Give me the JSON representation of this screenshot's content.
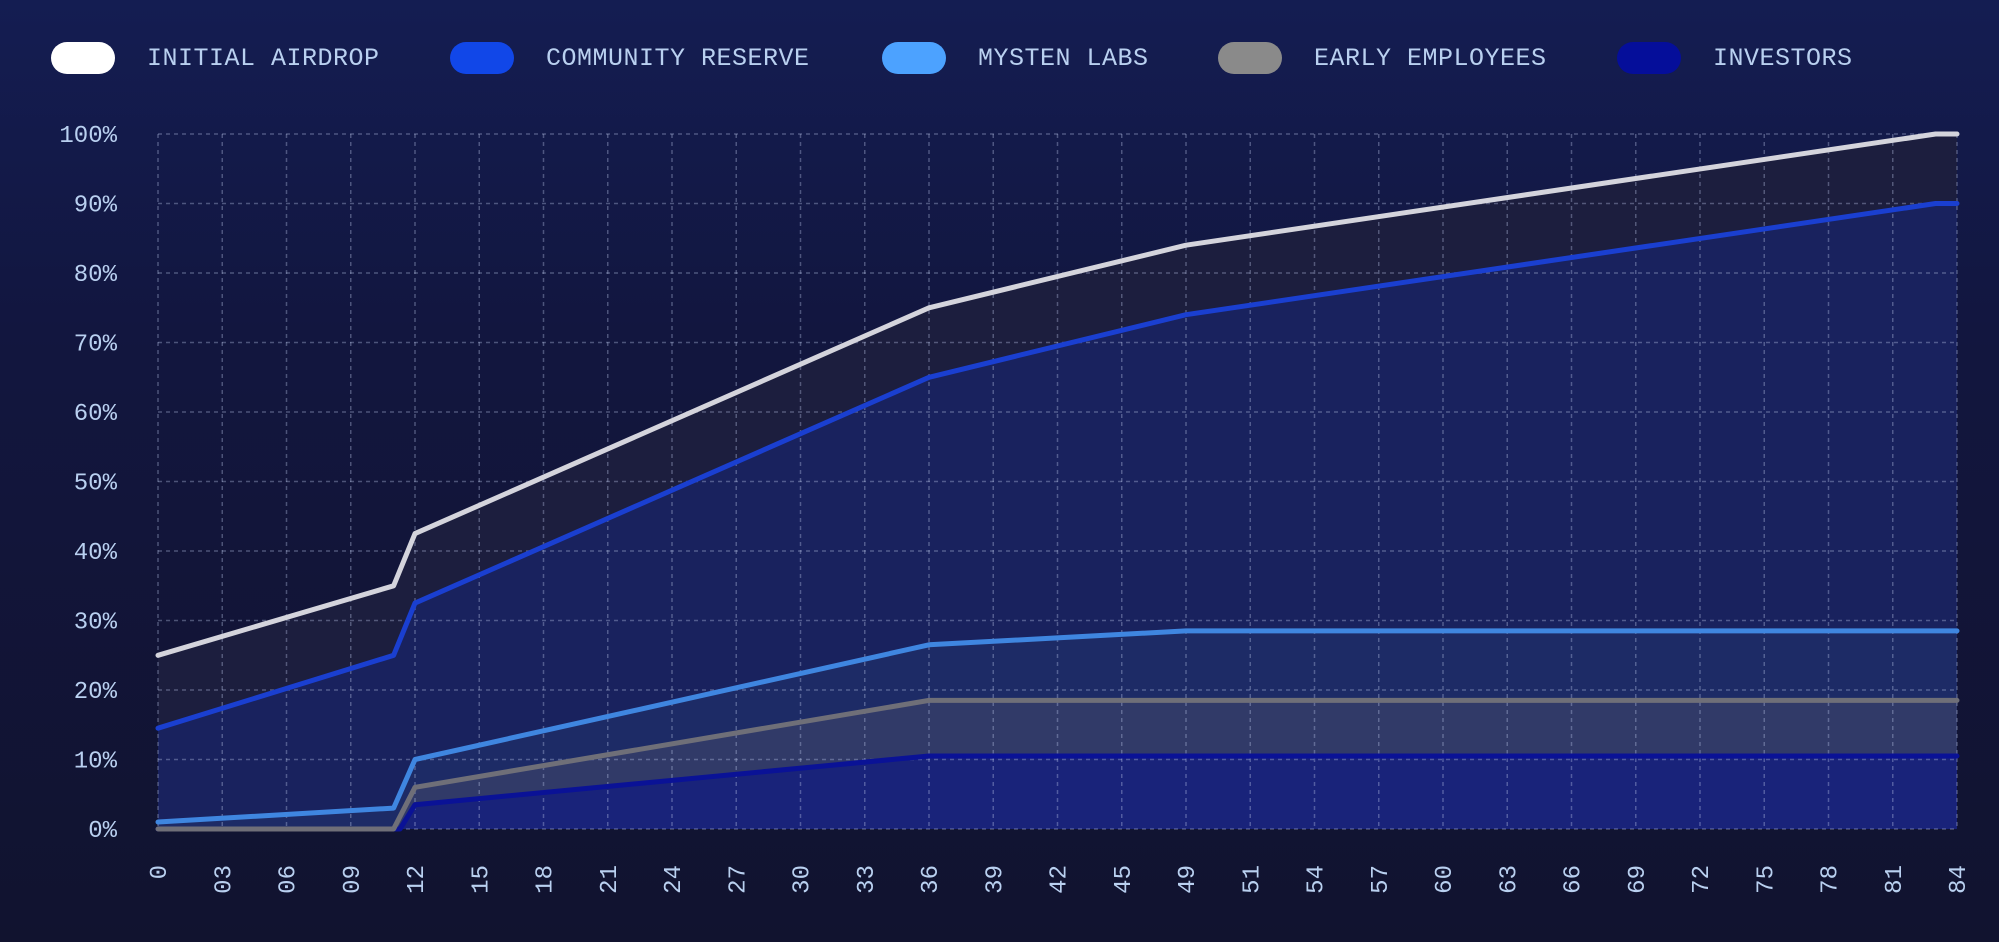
{
  "chart_data": {
    "type": "area",
    "title": "",
    "xlabel": "",
    "ylabel": "",
    "ylim": [
      0,
      100
    ],
    "grid": true,
    "legend_position": "top",
    "y_ticks": [
      "0%",
      "10%",
      "20%",
      "30%",
      "40%",
      "50%",
      "60%",
      "70%",
      "80%",
      "90%",
      "100%"
    ],
    "x_ticks": [
      {
        "label": "0",
        "value": 0
      },
      {
        "label": "03",
        "value": 3
      },
      {
        "label": "06",
        "value": 6
      },
      {
        "label": "09",
        "value": 9
      },
      {
        "label": "12",
        "value": 12
      },
      {
        "label": "15",
        "value": 15
      },
      {
        "label": "18",
        "value": 18
      },
      {
        "label": "21",
        "value": 21
      },
      {
        "label": "24",
        "value": 24
      },
      {
        "label": "27",
        "value": 27
      },
      {
        "label": "30",
        "value": 30
      },
      {
        "label": "33",
        "value": 33
      },
      {
        "label": "36",
        "value": 36
      },
      {
        "label": "39",
        "value": 39
      },
      {
        "label": "42",
        "value": 42
      },
      {
        "label": "45",
        "value": 45
      },
      {
        "label": "49",
        "value": 49
      },
      {
        "label": "51",
        "value": 51
      },
      {
        "label": "54",
        "value": 54
      },
      {
        "label": "57",
        "value": 57
      },
      {
        "label": "60",
        "value": 60
      },
      {
        "label": "63",
        "value": 63
      },
      {
        "label": "66",
        "value": 66
      },
      {
        "label": "69",
        "value": 69
      },
      {
        "label": "72",
        "value": 72
      },
      {
        "label": "75",
        "value": 75
      },
      {
        "label": "78",
        "value": 78
      },
      {
        "label": "81",
        "value": 81
      },
      {
        "label": "84",
        "value": 84
      }
    ],
    "series": [
      {
        "name": "INITIAL AIRDROP",
        "color": "#ffffff",
        "line": "#d4d4dc",
        "fill": "#1c1e3e",
        "points": [
          [
            0,
            25
          ],
          [
            11,
            35
          ],
          [
            12,
            42.5
          ],
          [
            36,
            75
          ],
          [
            49,
            84
          ],
          [
            83,
            100
          ],
          [
            84,
            100
          ]
        ]
      },
      {
        "name": "COMMUNITY RESERVE",
        "color": "#1147e8",
        "line": "#1a3fd0",
        "fill": "#19225e",
        "points": [
          [
            0,
            14.5
          ],
          [
            11,
            25
          ],
          [
            12,
            32.5
          ],
          [
            36,
            65
          ],
          [
            49,
            74
          ],
          [
            83,
            90
          ],
          [
            84,
            90
          ]
        ]
      },
      {
        "name": "MYSTEN LABS",
        "color": "#4ca2ff",
        "line": "#3f86e0",
        "fill": "#1d2b66",
        "points": [
          [
            0,
            1
          ],
          [
            11,
            3
          ],
          [
            12,
            10
          ],
          [
            36,
            26.5
          ],
          [
            49,
            28.5
          ],
          [
            84,
            28.5
          ]
        ]
      },
      {
        "name": "EARLY EMPLOYEES",
        "color": "#8a8a8a",
        "line": "#6f6f78",
        "fill": "#313a68",
        "points": [
          [
            0,
            0
          ],
          [
            11,
            0
          ],
          [
            12,
            6
          ],
          [
            36,
            18.5
          ],
          [
            49,
            18.5
          ],
          [
            84,
            18.5
          ]
        ]
      },
      {
        "name": "INVESTORS",
        "color": "#050e9a",
        "line": "#0a1296",
        "fill": "#19237a",
        "points": [
          [
            0,
            0
          ],
          [
            11.3,
            0
          ],
          [
            12,
            3.5
          ],
          [
            36,
            10.5
          ],
          [
            49,
            10.5
          ],
          [
            84,
            10.5
          ]
        ]
      }
    ]
  }
}
